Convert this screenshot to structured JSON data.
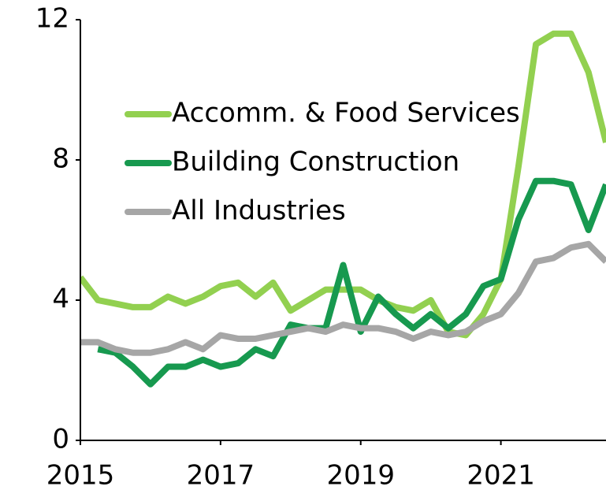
{
  "chart_data": {
    "type": "line",
    "x": [
      2015,
      2015.25,
      2015.5,
      2015.75,
      2016,
      2016.25,
      2016.5,
      2016.75,
      2017,
      2017.25,
      2017.5,
      2017.75,
      2018,
      2018.25,
      2018.5,
      2018.75,
      2019,
      2019.25,
      2019.5,
      2019.75,
      2020,
      2020.25,
      2020.5,
      2020.75,
      2021,
      2021.25,
      2021.5,
      2021.75,
      2022,
      2022.25,
      2022.5
    ],
    "series": [
      {
        "name": "Accomm. & Food Services",
        "color": "#92d050",
        "values": [
          4.65,
          4.0,
          3.9,
          3.8,
          3.8,
          4.1,
          3.9,
          4.1,
          4.4,
          4.5,
          4.1,
          4.5,
          3.7,
          4.0,
          4.3,
          4.3,
          4.3,
          4.0,
          3.8,
          3.7,
          4.0,
          3.1,
          3.0,
          3.6,
          4.6,
          7.8,
          11.3,
          11.6,
          11.6,
          10.5,
          8.5
        ]
      },
      {
        "name": "Building Construction",
        "color": "#17994f",
        "values": [
          null,
          2.6,
          2.5,
          2.1,
          1.6,
          2.1,
          2.1,
          2.3,
          2.1,
          2.2,
          2.6,
          2.4,
          3.3,
          3.2,
          3.2,
          5.0,
          3.1,
          4.1,
          3.6,
          3.2,
          3.6,
          3.2,
          3.6,
          4.4,
          4.6,
          6.3,
          7.4,
          7.4,
          7.3,
          6.0,
          7.3
        ]
      },
      {
        "name": "All Industries",
        "color": "#a6a6a6",
        "values": [
          2.8,
          2.8,
          2.6,
          2.5,
          2.5,
          2.6,
          2.8,
          2.6,
          3.0,
          2.9,
          2.9,
          3.0,
          3.1,
          3.2,
          3.1,
          3.3,
          3.2,
          3.2,
          3.1,
          2.9,
          3.1,
          3.0,
          3.1,
          3.4,
          3.6,
          4.2,
          5.1,
          5.2,
          5.5,
          5.6,
          5.1
        ]
      }
    ],
    "xlim": [
      2015,
      2022.5
    ],
    "xticks": [
      2015,
      2017,
      2019,
      2021
    ],
    "ylim": [
      0,
      12
    ],
    "yticks": [
      0,
      4,
      8,
      12
    ],
    "grid": false,
    "legend": "upper-left"
  }
}
